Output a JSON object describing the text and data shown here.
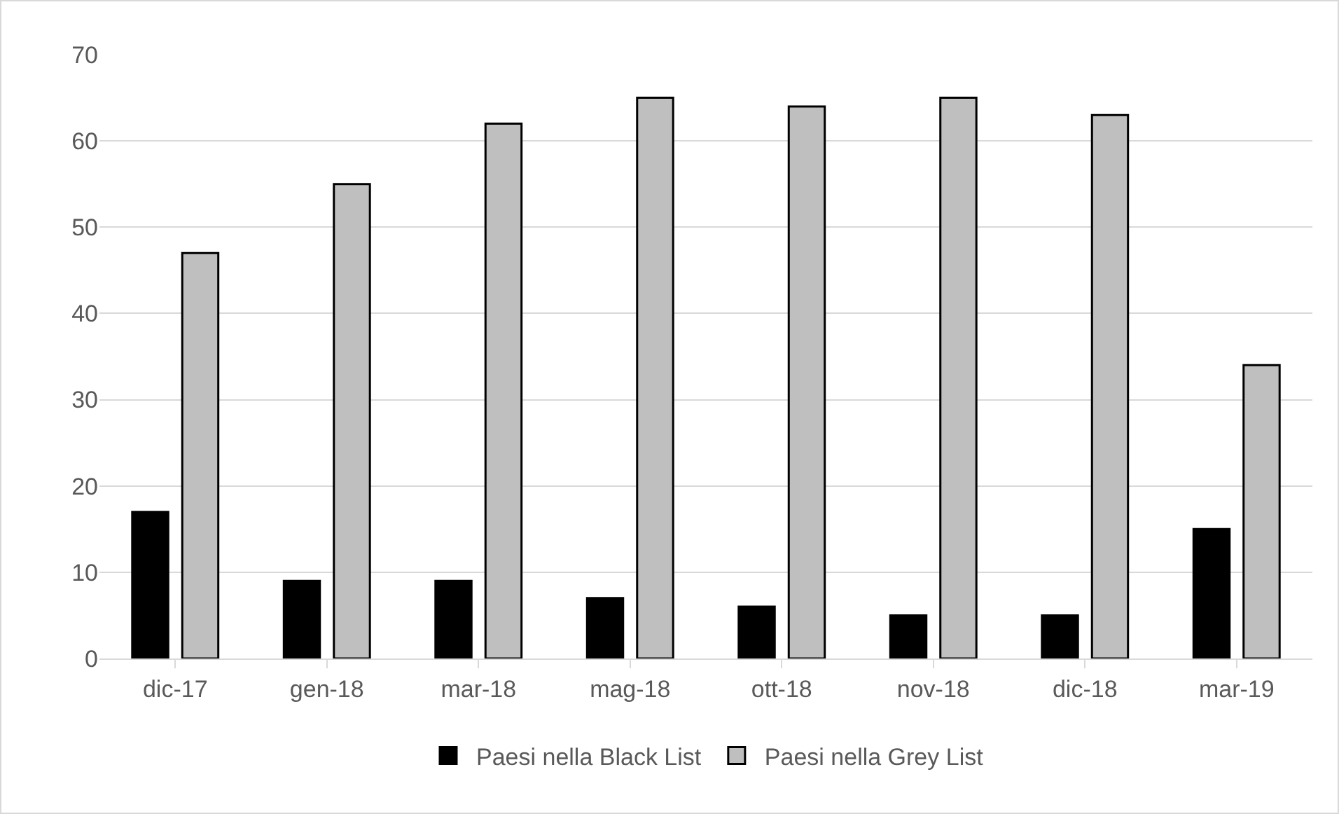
{
  "chart_data": {
    "type": "bar",
    "categories": [
      "dic-17",
      "gen-18",
      "mar-18",
      "mag-18",
      "ott-18",
      "nov-18",
      "dic-18",
      "mar-19"
    ],
    "series": [
      {
        "name": "Paesi nella Black List",
        "color": "#000000",
        "values": [
          17,
          9,
          9,
          7,
          6,
          5,
          5,
          15
        ]
      },
      {
        "name": "Paesi nella Grey List",
        "color": "#bfbfbf",
        "values": [
          47,
          55,
          62,
          65,
          64,
          65,
          63,
          34
        ]
      }
    ],
    "ylim": [
      0,
      70
    ],
    "yticks": [
      0,
      10,
      20,
      30,
      40,
      50,
      60,
      70
    ],
    "grid": "y",
    "legend": "bottom"
  }
}
